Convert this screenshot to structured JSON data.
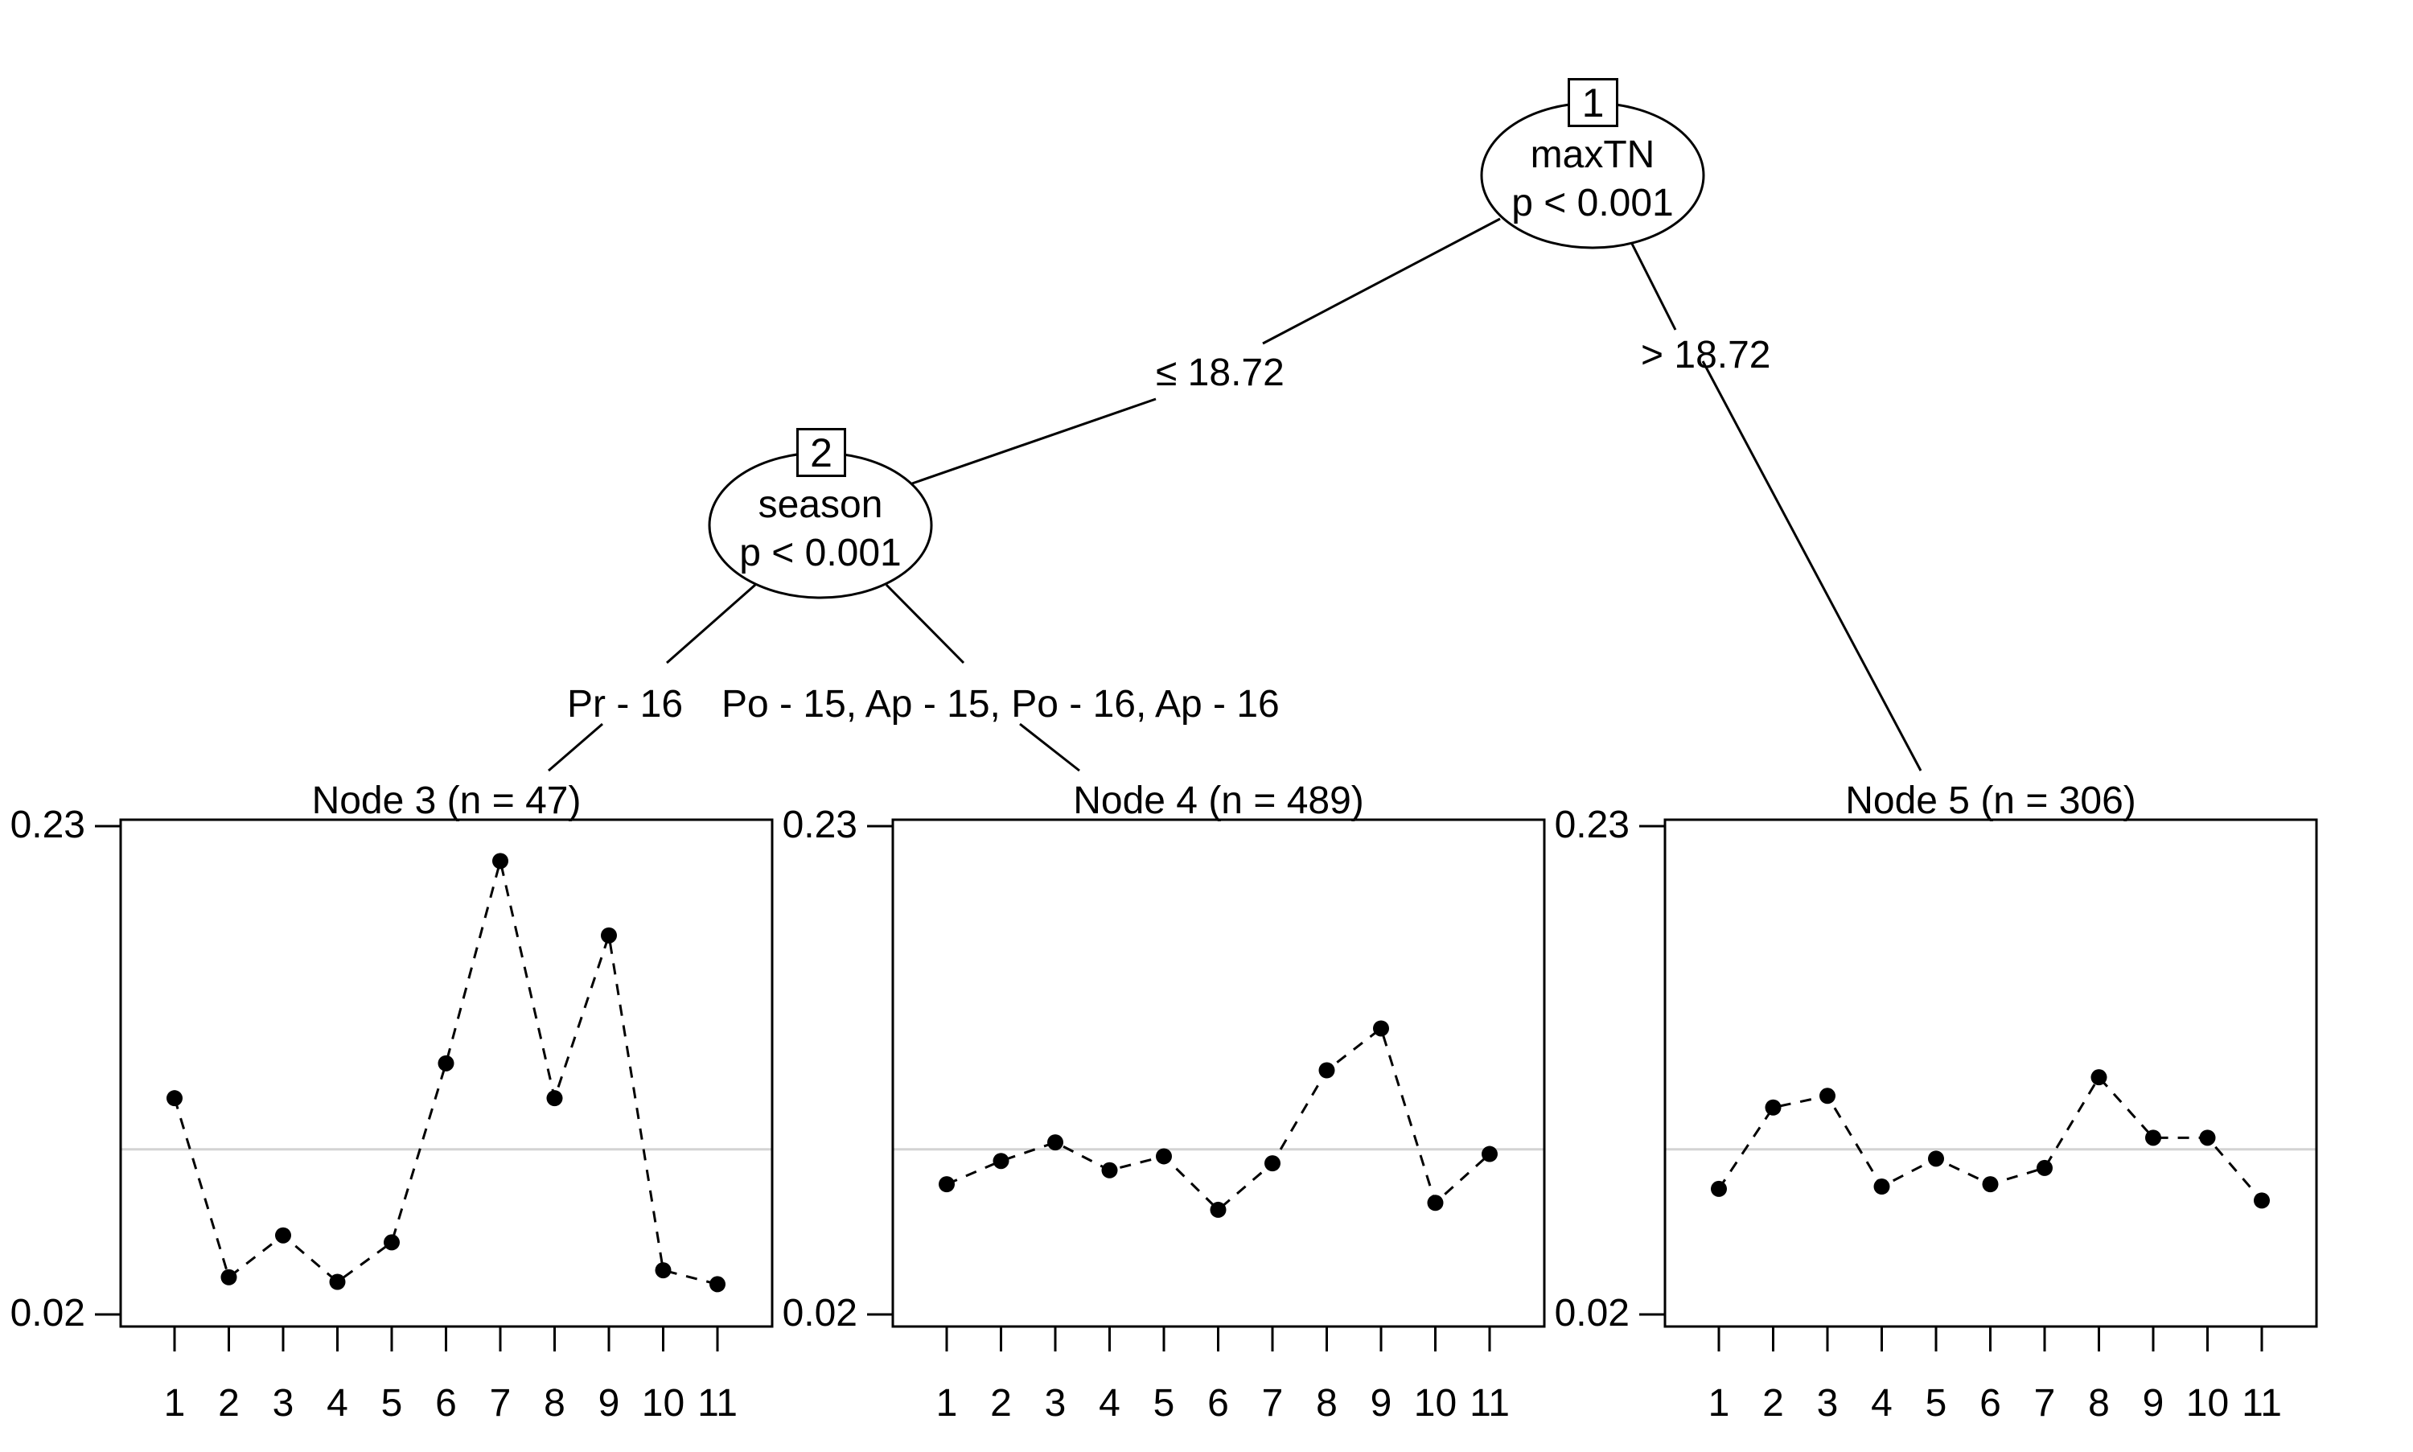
{
  "tree": {
    "inner_nodes": [
      {
        "id": "1",
        "variable": "maxTN",
        "pvalue": "p < 0.001"
      },
      {
        "id": "2",
        "variable": "season",
        "pvalue": "p < 0.001"
      }
    ],
    "edges": [
      {
        "from": "1",
        "to": "2",
        "label": "≤ 18.72"
      },
      {
        "from": "1",
        "to": "5",
        "label": "> 18.72"
      },
      {
        "from": "2",
        "to": "3",
        "label": "Pr - 16"
      },
      {
        "from": "2",
        "to": "4",
        "label": "Po - 15, Ap - 15, Po - 16, Ap - 16"
      }
    ]
  },
  "panels": [
    {
      "title": "Node 3 (n = 47)"
    },
    {
      "title": "Node 4 (n = 489)"
    },
    {
      "title": "Node 5 (n = 306)"
    }
  ],
  "axis": {
    "y_ticks": [
      "0.23",
      "0.02"
    ],
    "x_ticks": [
      "1",
      "2",
      "3",
      "4",
      "5",
      "6",
      "7",
      "8",
      "9",
      "10",
      "11"
    ]
  },
  "colors": {
    "line": "#000000",
    "reference_line": "#d3d3d3",
    "points": "#000000"
  },
  "chart_data": [
    {
      "type": "line",
      "title": "Node 3 (n = 47)",
      "x": [
        1,
        2,
        3,
        4,
        5,
        6,
        7,
        8,
        9,
        10,
        11
      ],
      "values": [
        0.113,
        0.036,
        0.054,
        0.034,
        0.051,
        0.128,
        0.215,
        0.113,
        0.183,
        0.039,
        0.033
      ],
      "reference_line": 0.091,
      "ylim": [
        0.02,
        0.23
      ],
      "y_ticks": [
        0.02,
        0.23
      ],
      "xlabel": "",
      "ylabel": "",
      "line_style": "dashed",
      "marker": "filled-circle",
      "grid": false
    },
    {
      "type": "line",
      "title": "Node 4 (n = 489)",
      "x": [
        1,
        2,
        3,
        4,
        5,
        6,
        7,
        8,
        9,
        10,
        11
      ],
      "values": [
        0.076,
        0.086,
        0.094,
        0.082,
        0.088,
        0.065,
        0.085,
        0.125,
        0.143,
        0.068,
        0.089
      ],
      "reference_line": 0.091,
      "ylim": [
        0.02,
        0.23
      ],
      "y_ticks": [
        0.02,
        0.23
      ],
      "xlabel": "",
      "ylabel": "",
      "line_style": "dashed",
      "marker": "filled-circle",
      "grid": false
    },
    {
      "type": "line",
      "title": "Node 5 (n = 306)",
      "x": [
        1,
        2,
        3,
        4,
        5,
        6,
        7,
        8,
        9,
        10,
        11
      ],
      "values": [
        0.074,
        0.109,
        0.114,
        0.075,
        0.087,
        0.076,
        0.083,
        0.122,
        0.096,
        0.096,
        0.069
      ],
      "reference_line": 0.091,
      "ylim": [
        0.02,
        0.23
      ],
      "y_ticks": [
        0.02,
        0.23
      ],
      "xlabel": "",
      "ylabel": "",
      "line_style": "dashed",
      "marker": "filled-circle",
      "grid": false
    }
  ]
}
